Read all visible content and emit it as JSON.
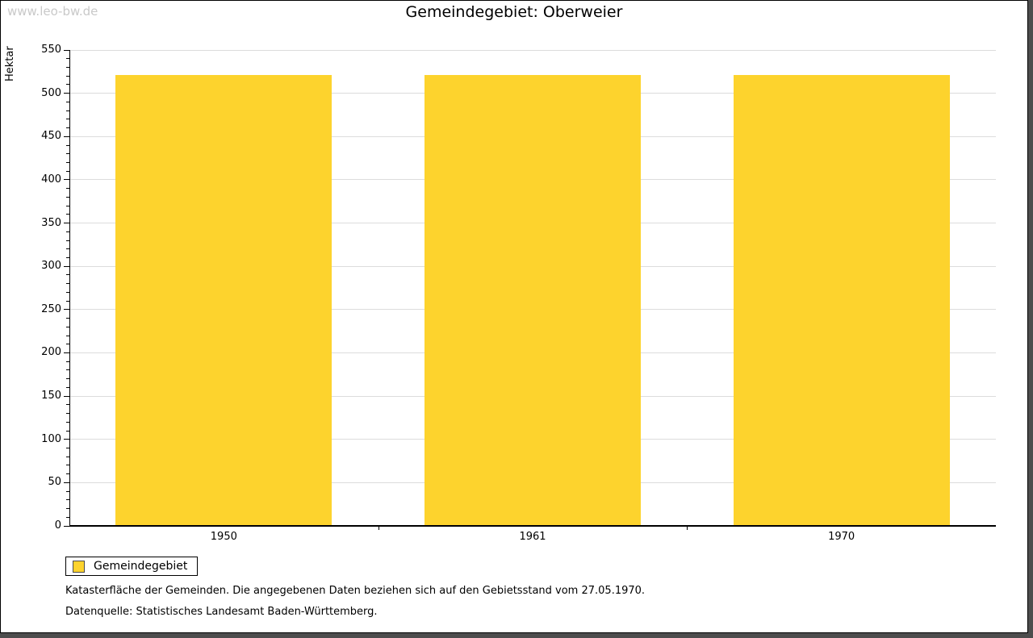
{
  "watermark": "www.leo-bw.de",
  "header": {
    "title": "Gemeindegebiet: Oberweier"
  },
  "chart_data": {
    "type": "bar",
    "title": "Gemeindegebiet: Oberweier",
    "categories": [
      "1950",
      "1961",
      "1970"
    ],
    "series": [
      {
        "name": "Gemeindegebiet",
        "values": [
          521,
          521,
          521
        ]
      }
    ],
    "xlabel": "",
    "ylabel": "Hektar",
    "ylim": [
      0,
      550
    ],
    "y_major_step": 50,
    "y_minor_step": 10,
    "y_tick_labels": [
      "0",
      "50",
      "100",
      "150",
      "200",
      "250",
      "300",
      "350",
      "400",
      "450",
      "500",
      "550"
    ],
    "grid": "horizontal-major-on",
    "legend_position": "bottom-left",
    "bar_color": "#fdd32d"
  },
  "legend": {
    "items": [
      {
        "label": "Gemeindegebiet",
        "color": "#fdd32d"
      }
    ]
  },
  "footnotes": [
    "Katasterfläche der Gemeinden. Die angegebenen Daten beziehen sich auf den Gebietsstand vom 27.05.1970.",
    "Datenquelle: Statistisches Landesamt Baden-Württemberg."
  ],
  "colors": {
    "bar": "#fdd32d",
    "gridline": "#dcdcdc",
    "axis": "#000000",
    "watermark": "#c9c9c9",
    "frame_shadow": "#4d4d4d"
  }
}
